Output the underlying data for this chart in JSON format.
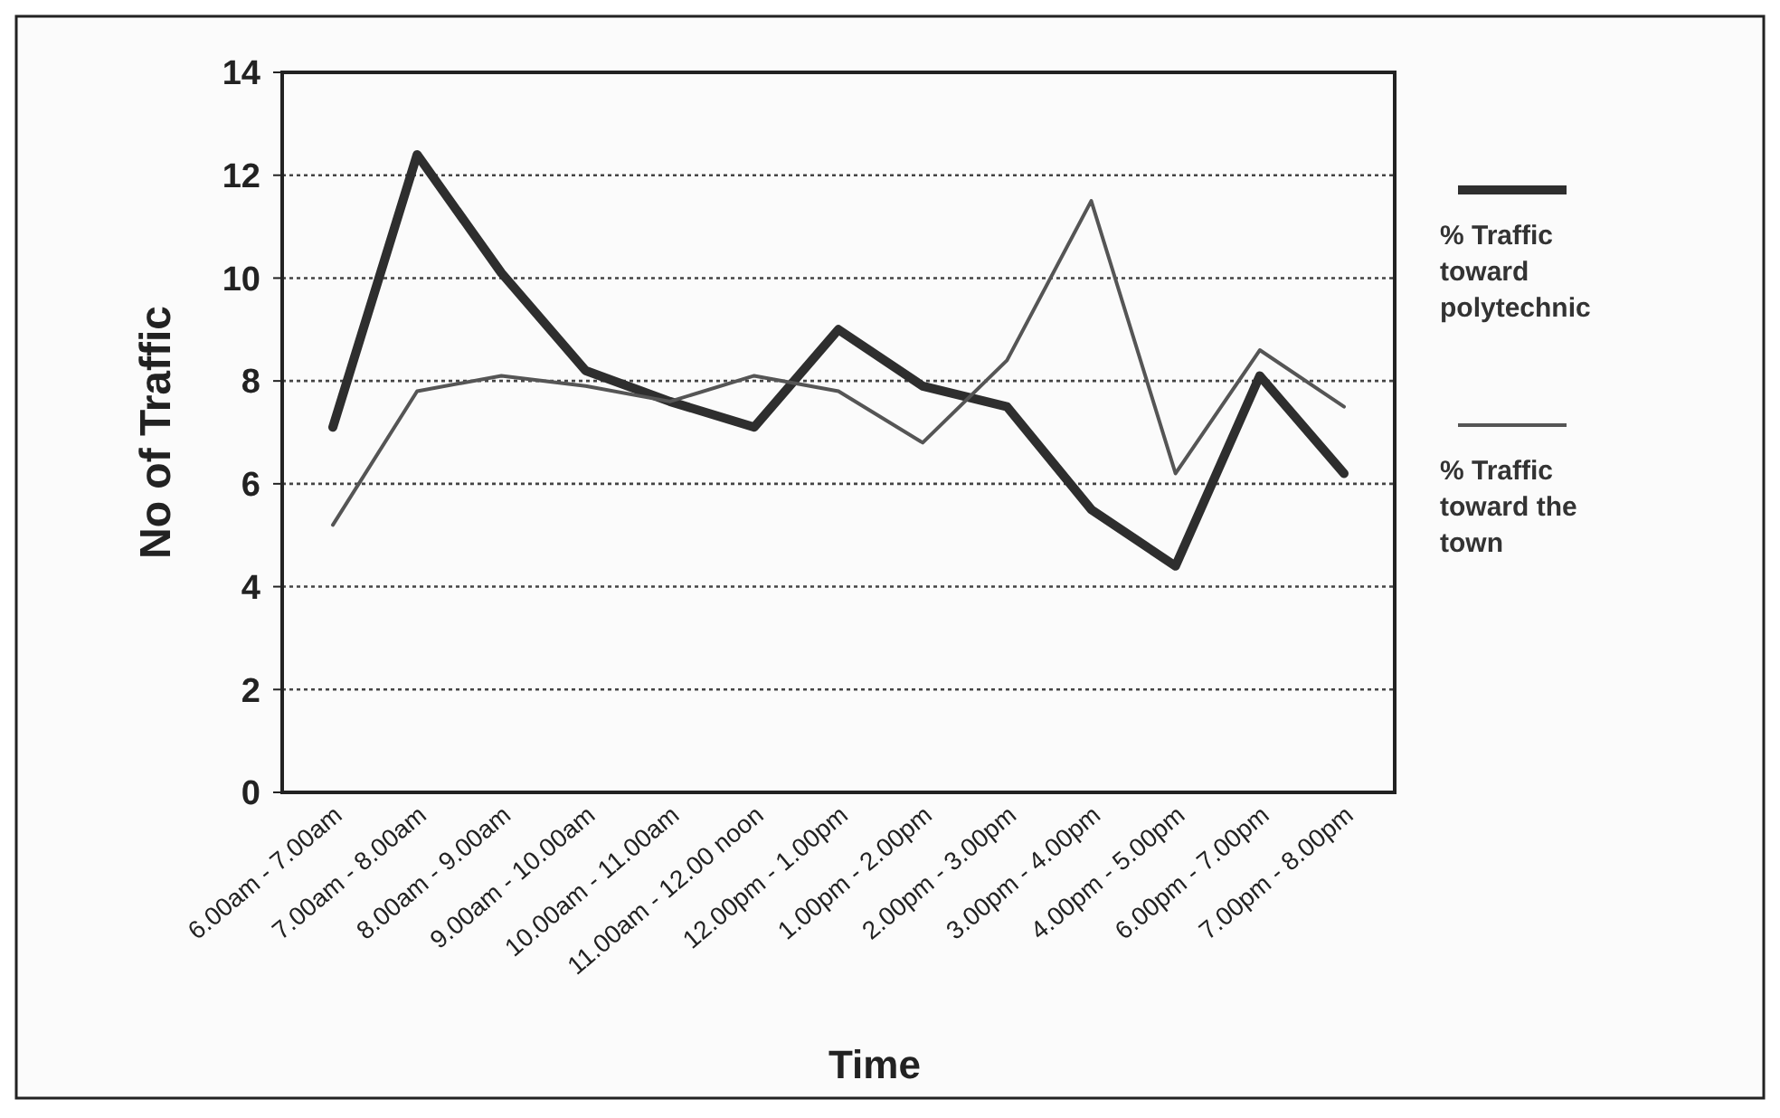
{
  "chart_data": {
    "type": "line",
    "xlabel": "Time",
    "ylabel": "No of Traffic",
    "categories": [
      "6.00am - 7.00am",
      "7.00am - 8.00am",
      "8.00am - 9.00am",
      "9.00am - 10.00am",
      "10.00am - 11.00am",
      "11.00am - 12.00 noon",
      "12.00pm - 1.00pm",
      "1.00pm - 2.00pm",
      "2.00pm - 3.00pm",
      "3.00pm - 4.00pm",
      "4.00pm - 5.00pm",
      "6.00pm - 7.00pm",
      "7.00pm - 8.00pm"
    ],
    "series": [
      {
        "name": "% Traffic toward polytechnic",
        "color": "#2e2e2e",
        "values": [
          7.1,
          12.4,
          10.1,
          8.2,
          7.6,
          7.1,
          9.0,
          7.9,
          7.5,
          5.5,
          4.4,
          8.1,
          6.2
        ]
      },
      {
        "name": "% Traffic toward the town",
        "color": "#555555",
        "values": [
          5.2,
          7.8,
          8.1,
          7.9,
          7.6,
          8.1,
          7.8,
          6.8,
          8.4,
          11.5,
          6.2,
          8.6,
          7.5
        ]
      }
    ],
    "ylim": [
      0,
      14
    ],
    "yticks": [
      0,
      2,
      4,
      6,
      8,
      10,
      12,
      14
    ],
    "grid": "y",
    "legend": "right",
    "line_style": "solid",
    "marker": "none"
  }
}
